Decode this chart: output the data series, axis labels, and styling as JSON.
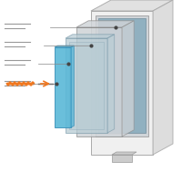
{
  "bg_color": "#ffffff",
  "outer_frame_face": "#f0f0f0",
  "outer_frame_edge": "#aaaaaa",
  "outer_frame_top": "#e0e0e0",
  "outer_frame_right": "#d8d8d8",
  "gray_layer1_face": "#d0d4d8",
  "gray_layer1_edge": "#909090",
  "glass_layer_face": "#b8ccd4",
  "glass_layer_edge": "#7a9aaa",
  "glass_layer_alpha": 0.75,
  "blue_layer_face": "#5ab8d8",
  "blue_layer_edge": "#3a90b8",
  "blue_layer_alpha": 0.9,
  "screen_face": "#a8bcc8",
  "screen_edge": "#7090a0",
  "dot_color": "#444444",
  "line_color": "#888888",
  "orange_color": "#f07820",
  "text_line_color": "#999999",
  "stand_face": "#cccccc",
  "stand_edge": "#999999",
  "inner_screen_face": "#90b0c0",
  "inner_screen_edge": "#608090"
}
